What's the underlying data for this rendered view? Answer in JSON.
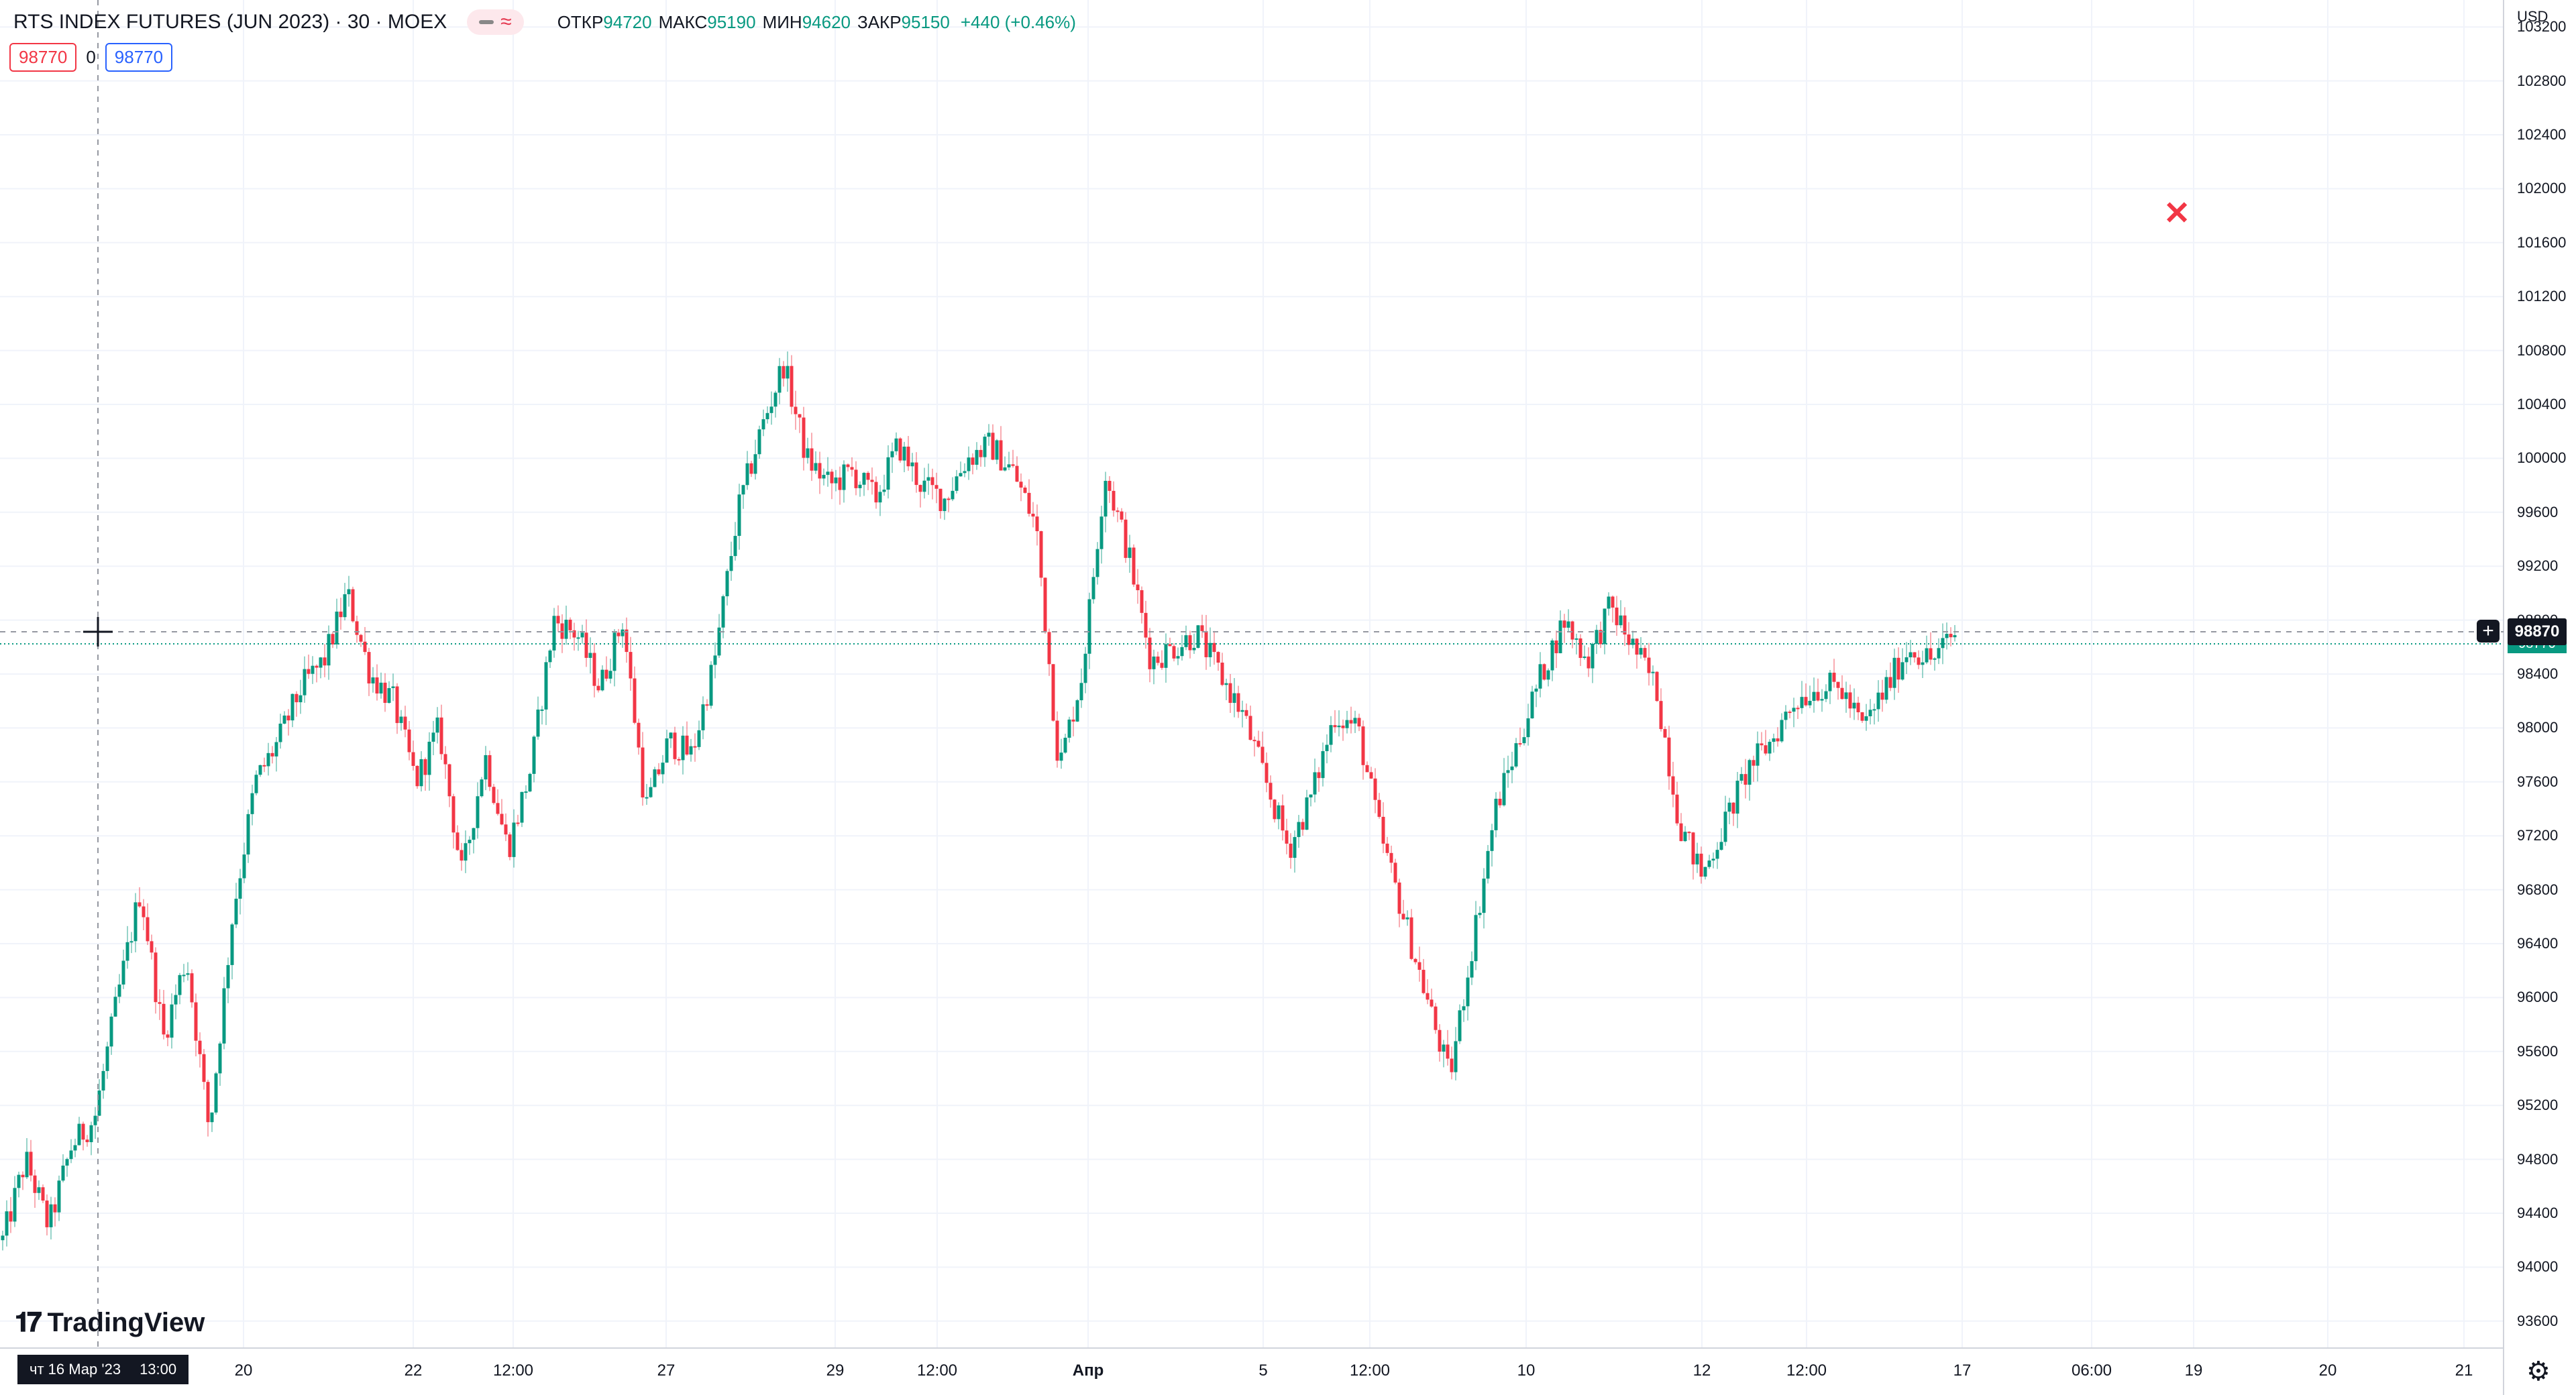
{
  "legend": {
    "title": "RTS INDEX FUTURES (JUN 2023) · 30 · MOEX",
    "open_label": "ОТКР",
    "open": "94720",
    "high_label": "МАКС",
    "high": "95190",
    "low_label": "МИН",
    "low": "94620",
    "close_label": "ЗАКР",
    "close": "95150",
    "change": "+440 (+0.46%)"
  },
  "bid_ask": {
    "bid": "98770",
    "spread": "0",
    "ask": "98770"
  },
  "price_axis": {
    "currency": "USD",
    "last_price": "98870",
    "overlap_tag": "98770"
  },
  "crosshair_time": {
    "date": "чт 16 Мар '23",
    "time": "13:00"
  },
  "brand": {
    "name": "TradingView"
  },
  "colors": {
    "up": "#089981",
    "down": "#f23645",
    "grid": "#f0f3fa",
    "text": "#131722"
  },
  "chart_data": {
    "type": "candlestick",
    "title": "RTS INDEX FUTURES (JUN 2023) · 30 · MOEX",
    "ylim": [
      93400,
      103400
    ],
    "y_ticks": [
      "93600",
      "94000",
      "94400",
      "94800",
      "95200",
      "95600",
      "96000",
      "96400",
      "96800",
      "97200",
      "97600",
      "98000",
      "98400",
      "98800",
      "99200",
      "99600",
      "100000",
      "100400",
      "100800",
      "101200",
      "101600",
      "102000",
      "102400",
      "102800",
      "103200"
    ],
    "x_tick_labels": [
      "20",
      "22",
      "12:00",
      "27",
      "29",
      "12:00",
      "Апр",
      "5",
      "12:00",
      "10",
      "12",
      "12:00",
      "17",
      "06:00",
      "19",
      "20",
      "21"
    ],
    "x_tick_bold": [
      "Апр"
    ],
    "anchors": [
      94200,
      94800,
      94300,
      94900,
      95100,
      96000,
      96800,
      95700,
      96300,
      95000,
      96600,
      97600,
      97900,
      98300,
      98500,
      99000,
      98400,
      98200,
      97600,
      98000,
      96900,
      97800,
      97100,
      97700,
      98800,
      98700,
      98300,
      98800,
      97400,
      97900,
      97800,
      98500,
      99600,
      100200,
      100700,
      100000,
      99800,
      99900,
      99700,
      100100,
      99800,
      99700,
      100000,
      100100,
      99900,
      99500,
      97700,
      98400,
      99900,
      99300,
      98500,
      98600,
      98700,
      98400,
      98100,
      97600,
      97100,
      97500,
      98100,
      98000,
      97200,
      96600,
      96000,
      95400,
      96400,
      97400,
      97900,
      98400,
      98800,
      98500,
      98900,
      98600,
      98300,
      97300,
      96900,
      97300,
      97700,
      97900,
      98200,
      98300,
      98300,
      98000,
      98300,
      98600,
      98500,
      98700
    ]
  }
}
